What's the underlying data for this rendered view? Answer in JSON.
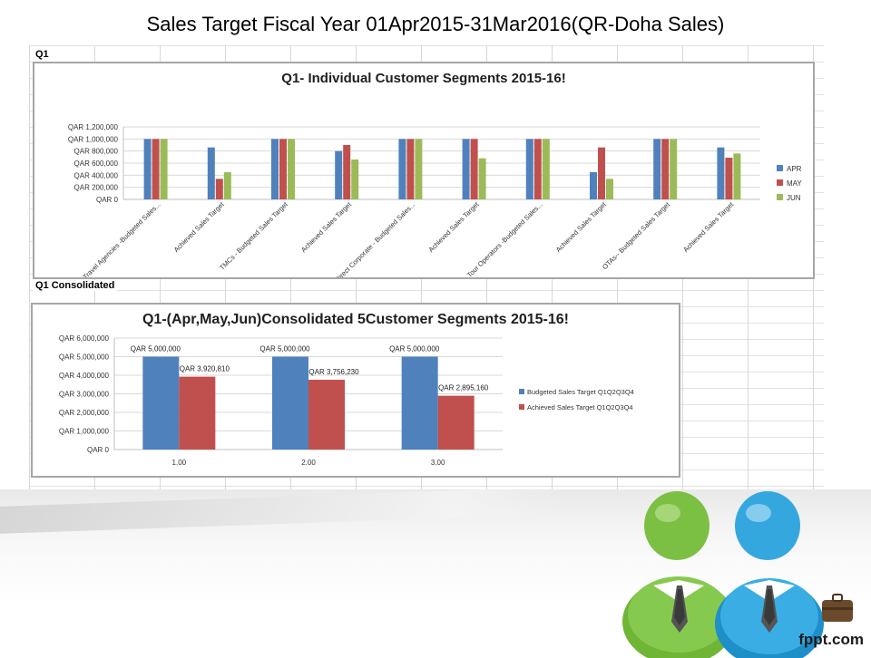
{
  "slide": {
    "title": "Sales Target Fiscal Year 01Apr2015-31Mar2016(QR-Doha Sales)",
    "brand": "fppt.com"
  },
  "sheet": {
    "section1_label": "Q1",
    "section2_label": "Q1 Consolidated"
  },
  "colors": {
    "apr": "#4f81bd",
    "may": "#c0504d",
    "jun": "#9bbb59",
    "budgeted": "#4f81bd",
    "achieved": "#c0504d",
    "figure_green": "#7cc043",
    "figure_blue": "#35a7df"
  },
  "chart_data": [
    {
      "type": "bar",
      "title": "Q1- Individual Customer Segments 2015-16!",
      "categories": [
        "Travel Agencies -Budgeted Sales...",
        "Achieved Sales Target",
        "TMCs - Budgeted Sales Target",
        "Achieved Sales Target",
        "Direct Corporate - Budgeted Sales...",
        "Achieved Sales Target",
        "Tour Operators -Budgeted Sales...",
        "Achieved Sales Target",
        "OTAs-- Budgeted Sales Target",
        "Achieved Sales Target"
      ],
      "series": [
        {
          "name": "APR",
          "values": [
            1000000,
            860000,
            1000000,
            800000,
            1000000,
            1000000,
            1000000,
            450000,
            1000000,
            860000
          ]
        },
        {
          "name": "MAY",
          "values": [
            1000000,
            340000,
            1000000,
            900000,
            1000000,
            1000000,
            1000000,
            860000,
            1000000,
            690000
          ]
        },
        {
          "name": "JUN",
          "values": [
            1000000,
            450000,
            1000000,
            660000,
            1000000,
            680000,
            1000000,
            340000,
            1000000,
            760000
          ]
        }
      ],
      "yticks": [
        "QAR 0",
        "QAR 200,000",
        "QAR 400,000",
        "QAR 600,000",
        "QAR 800,000",
        "QAR 1,000,000",
        "QAR 1,200,000"
      ],
      "ylim": [
        0,
        1200000
      ],
      "legend": "right",
      "grid": true
    },
    {
      "type": "bar",
      "title": "Q1-(Apr,May,Jun)Consolidated 5Customer Segments 2015-16!",
      "categories": [
        "1.00",
        "2.00",
        "3.00"
      ],
      "series": [
        {
          "name": "Budgeted Sales Target Q1Q2Q3Q4",
          "values": [
            5000000,
            5000000,
            5000000
          ],
          "labels": [
            "QAR 5,000,000",
            "QAR 5,000,000",
            "QAR 5,000,000"
          ]
        },
        {
          "name": "Achieved Sales Target Q1Q2Q3Q4",
          "values": [
            3920810,
            3756230,
            2895160
          ],
          "labels": [
            "QAR 3,920,810",
            "QAR 3,756,230",
            "QAR 2,895,160"
          ]
        }
      ],
      "yticks": [
        "QAR 0",
        "QAR 1,000,000",
        "QAR 2,000,000",
        "QAR 3,000,000",
        "QAR 4,000,000",
        "QAR 5,000,000",
        "QAR 6,000,000"
      ],
      "ylim": [
        0,
        6000000
      ],
      "legend": "right",
      "grid": true
    }
  ]
}
